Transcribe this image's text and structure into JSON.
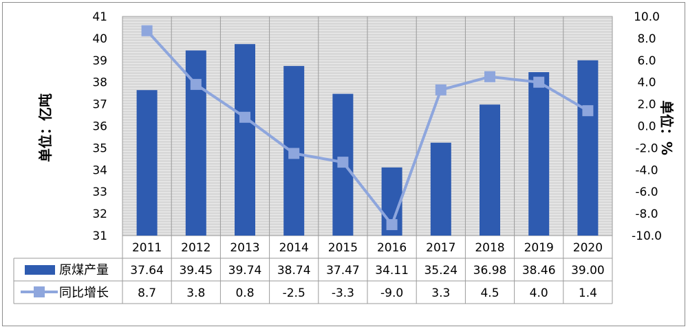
{
  "chart_data": {
    "type": "bar+line",
    "categories": [
      "2011",
      "2012",
      "2013",
      "2014",
      "2015",
      "2016",
      "2017",
      "2018",
      "2019",
      "2020"
    ],
    "series": [
      {
        "name": "原煤产量",
        "kind": "bar",
        "axis": "left",
        "color": "#2e5bb0",
        "values": [
          37.64,
          39.45,
          39.74,
          38.74,
          37.47,
          34.11,
          35.24,
          36.98,
          38.46,
          39.0
        ],
        "labels": [
          "37.64",
          "39.45",
          "39.74",
          "38.74",
          "37.47",
          "34.11",
          "35.24",
          "36.98",
          "38.46",
          "39.00"
        ]
      },
      {
        "name": "同比增长",
        "kind": "line",
        "axis": "right",
        "color": "#8ea6dd",
        "values": [
          8.7,
          3.8,
          0.8,
          -2.5,
          -3.3,
          -9.0,
          3.3,
          4.5,
          4.0,
          1.4
        ],
        "labels": [
          "8.7",
          "3.8",
          "0.8",
          "-2.5",
          "-3.3",
          "-9.0",
          "3.3",
          "4.5",
          "4.0",
          "1.4"
        ]
      }
    ],
    "ylabel_left": "单位：亿吨",
    "ylabel_right": "单位：%",
    "ylim_left": [
      31,
      41
    ],
    "ylim_right": [
      -10,
      10
    ],
    "yticks_left": [
      "41",
      "40",
      "39",
      "38",
      "37",
      "36",
      "35",
      "34",
      "33",
      "32",
      "31"
    ],
    "yticks_right": [
      "10.0",
      "8.0",
      "6.0",
      "4.0",
      "2.0",
      "0.0",
      "-2.0",
      "-4.0",
      "-6.0",
      "-8.0",
      "-10.0"
    ],
    "grid": true,
    "legend": "data-table"
  }
}
